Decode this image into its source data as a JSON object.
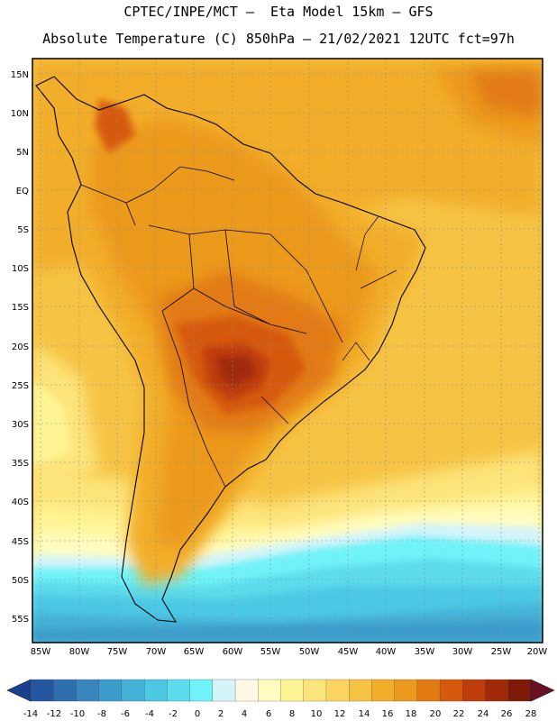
{
  "header": {
    "line1": "CPTEC/INPE/MCT –  Eta Model 15km – GFS",
    "line2": "Absolute Temperature (C) 850hPa – 21/02/2021 12UTC fct=97h"
  },
  "map": {
    "lat_labels": [
      "15N",
      "10N",
      "5N",
      "EQ",
      "5S",
      "10S",
      "15S",
      "20S",
      "25S",
      "30S",
      "35S",
      "40S",
      "45S",
      "50S",
      "55S"
    ],
    "lon_labels": [
      "85W",
      "80W",
      "75W",
      "70W",
      "65W",
      "60W",
      "55W",
      "50W",
      "45W",
      "40W",
      "35W",
      "30W",
      "25W",
      "20W"
    ]
  },
  "colorbar": {
    "labels": [
      "-14",
      "-12",
      "-10",
      "-8",
      "-6",
      "-4",
      "-2",
      "0",
      "2",
      "4",
      "6",
      "8",
      "10",
      "12",
      "14",
      "16",
      "18",
      "20",
      "22",
      "24",
      "26",
      "28"
    ],
    "colors": [
      "#1b3f8f",
      "#24579f",
      "#2e6fae",
      "#3886bd",
      "#3c9ccb",
      "#44b2d8",
      "#4cc8e4",
      "#5bdcec",
      "#6ff3f8",
      "#d4f4fa",
      "#fff8e6",
      "#fffcc0",
      "#fff494",
      "#fde47a",
      "#fbd560",
      "#f6c445",
      "#f2ae2a",
      "#ec9a1e",
      "#e27a12",
      "#d65a0c",
      "#bf3d09",
      "#a02a08",
      "#7e1a08",
      "#6a1023"
    ]
  }
}
